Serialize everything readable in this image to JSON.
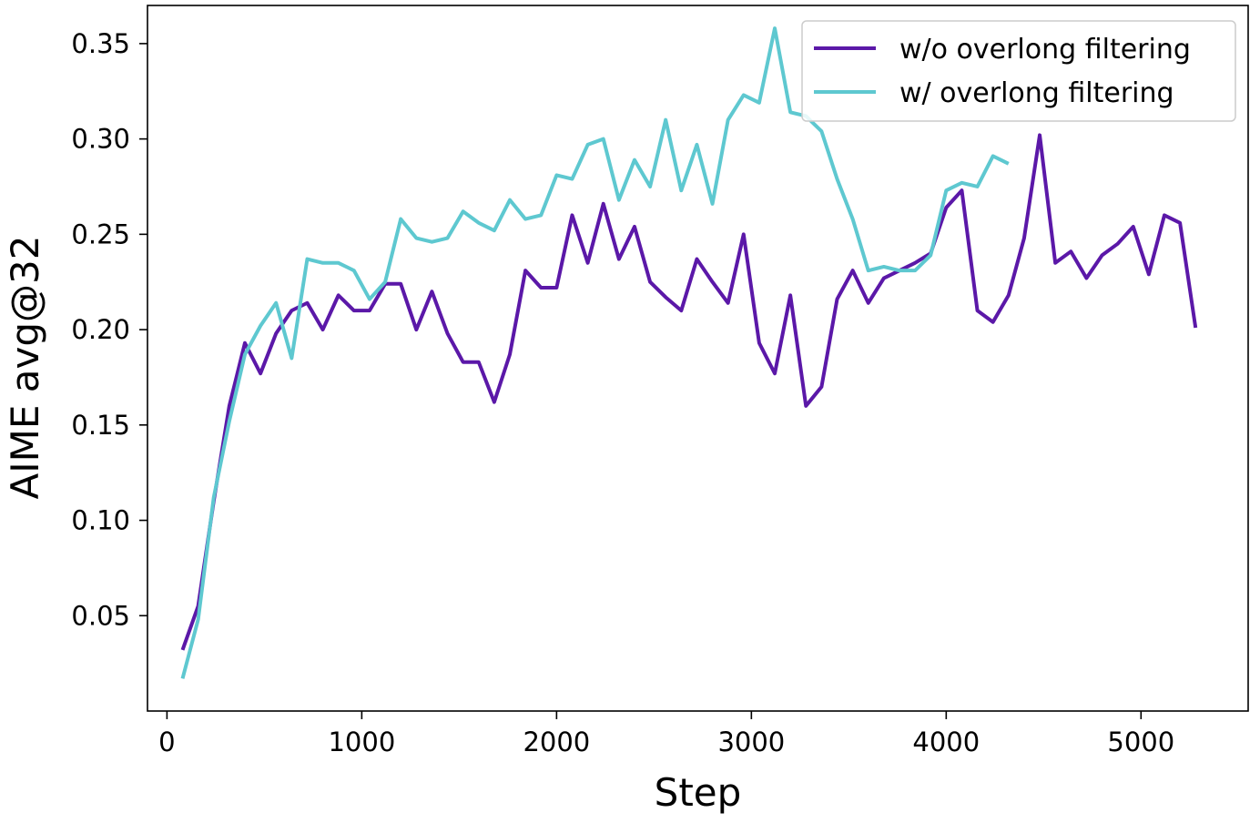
{
  "chart_data": {
    "type": "line",
    "title": "",
    "xlabel": "Step",
    "ylabel": "AIME avg@32",
    "xlim": [
      -100,
      5550
    ],
    "ylim": [
      0.0,
      0.37
    ],
    "xticks": [
      0,
      1000,
      2000,
      3000,
      4000,
      5000
    ],
    "xtick_labels": [
      "0",
      "1000",
      "2000",
      "3000",
      "4000",
      "5000"
    ],
    "yticks": [
      0.05,
      0.1,
      0.15,
      0.2,
      0.25,
      0.3,
      0.35
    ],
    "ytick_labels": [
      "0.05",
      "0.10",
      "0.15",
      "0.20",
      "0.25",
      "0.30",
      "0.35"
    ],
    "grid": false,
    "legend_position": "upper right",
    "series": [
      {
        "name": "w/o overlong filtering",
        "color": "#5b18a8",
        "x": [
          80,
          160,
          240,
          320,
          400,
          480,
          560,
          640,
          720,
          800,
          880,
          960,
          1040,
          1120,
          1200,
          1280,
          1360,
          1440,
          1520,
          1600,
          1680,
          1760,
          1840,
          1920,
          2000,
          2080,
          2160,
          2240,
          2320,
          2400,
          2480,
          2560,
          2640,
          2720,
          2800,
          2880,
          2960,
          3040,
          3120,
          3200,
          3280,
          3360,
          3440,
          3520,
          3600,
          3680,
          3760,
          3840,
          3920,
          4000,
          4080,
          4160,
          4240,
          4320,
          4400,
          4480,
          4560,
          4640,
          4720,
          4800,
          4880,
          4960,
          5040,
          5120,
          5200,
          5280
        ],
        "y": [
          0.032,
          0.055,
          0.11,
          0.16,
          0.193,
          0.177,
          0.198,
          0.21,
          0.214,
          0.2,
          0.218,
          0.21,
          0.21,
          0.224,
          0.224,
          0.2,
          0.22,
          0.198,
          0.183,
          0.183,
          0.162,
          0.187,
          0.231,
          0.222,
          0.222,
          0.26,
          0.235,
          0.266,
          0.237,
          0.254,
          0.225,
          0.217,
          0.21,
          0.237,
          0.225,
          0.214,
          0.25,
          0.193,
          0.177,
          0.218,
          0.16,
          0.17,
          0.216,
          0.231,
          0.214,
          0.227,
          0.231,
          0.235,
          0.24,
          0.264,
          0.273,
          0.21,
          0.204,
          0.218,
          0.248,
          0.302,
          0.235,
          0.241,
          0.227,
          0.239,
          0.245,
          0.254,
          0.229,
          0.26,
          0.256,
          0.201
        ]
      },
      {
        "name": "w/ overlong filtering",
        "color": "#5ec8d0",
        "x": [
          80,
          160,
          240,
          320,
          400,
          480,
          560,
          640,
          720,
          800,
          880,
          960,
          1040,
          1120,
          1200,
          1280,
          1360,
          1440,
          1520,
          1600,
          1680,
          1760,
          1840,
          1920,
          2000,
          2080,
          2160,
          2240,
          2320,
          2400,
          2480,
          2560,
          2640,
          2720,
          2800,
          2880,
          2960,
          3040,
          3120,
          3200,
          3280,
          3360,
          3440,
          3520,
          3600,
          3680,
          3760,
          3840,
          3920,
          4000,
          4080,
          4160,
          4240,
          4320
        ],
        "y": [
          0.017,
          0.048,
          0.112,
          0.152,
          0.187,
          0.202,
          0.214,
          0.185,
          0.237,
          0.235,
          0.235,
          0.231,
          0.216,
          0.225,
          0.258,
          0.248,
          0.246,
          0.248,
          0.262,
          0.256,
          0.252,
          0.268,
          0.258,
          0.26,
          0.281,
          0.279,
          0.297,
          0.3,
          0.268,
          0.289,
          0.275,
          0.31,
          0.273,
          0.297,
          0.266,
          0.31,
          0.323,
          0.319,
          0.358,
          0.314,
          0.312,
          0.304,
          0.279,
          0.258,
          0.231,
          0.233,
          0.231,
          0.231,
          0.239,
          0.273,
          0.277,
          0.275,
          0.291,
          0.287
        ]
      }
    ]
  }
}
